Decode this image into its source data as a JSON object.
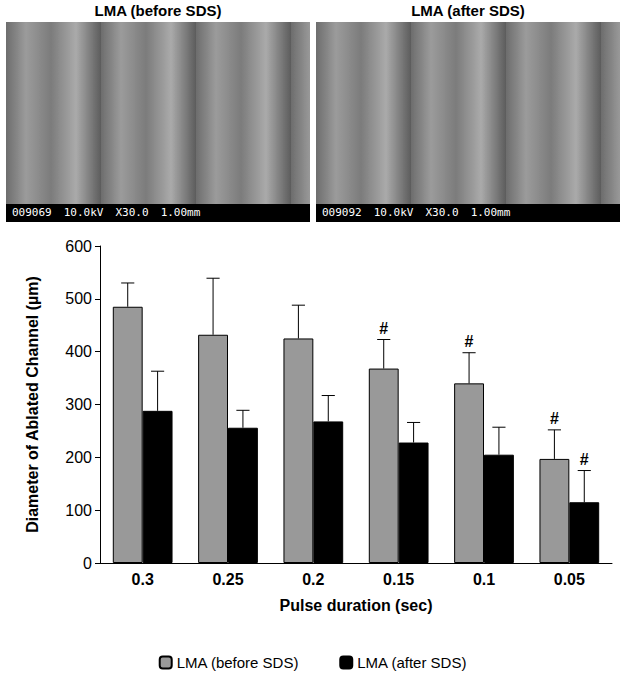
{
  "chart_data": {
    "type": "bar",
    "x_label": "Pulse duration (sec)",
    "y_label": "Diameter of Ablated Channel (µm)",
    "categories": [
      "0.3",
      "0.25",
      "0.2",
      "0.15",
      "0.1",
      "0.05"
    ],
    "series": [
      {
        "name": "LMA (before SDS)",
        "color": "#999999",
        "values": [
          485,
          432,
          425,
          368,
          340,
          197
        ],
        "errors": [
          45,
          107,
          63,
          55,
          58,
          55
        ]
      },
      {
        "name": "LMA (after SDS)",
        "color": "#000000",
        "values": [
          288,
          256,
          268,
          228,
          205,
          115
        ],
        "errors": [
          75,
          33,
          49,
          38,
          52,
          60
        ]
      }
    ],
    "annotations": [
      {
        "series": "LMA (before SDS)",
        "category": "0.15",
        "text": "#"
      },
      {
        "series": "LMA (before SDS)",
        "category": "0.1",
        "text": "#"
      },
      {
        "series": "LMA (before SDS)",
        "category": "0.05",
        "text": "#"
      },
      {
        "series": "LMA (after SDS)",
        "category": "0.05",
        "text": "#"
      }
    ],
    "ylim": [
      0,
      600
    ],
    "yticks": [
      0,
      100,
      200,
      300,
      400,
      500,
      600
    ],
    "grid": false,
    "legend": "bottom"
  },
  "panels": [
    {
      "title": "LMA (before SDS)",
      "info": [
        "009069",
        "10.0kV",
        "X30.0",
        "1.00mm"
      ]
    },
    {
      "title": "LMA (after SDS)",
      "info": [
        "009092",
        "10.0kV",
        "X30.0",
        "1.00mm"
      ]
    }
  ]
}
